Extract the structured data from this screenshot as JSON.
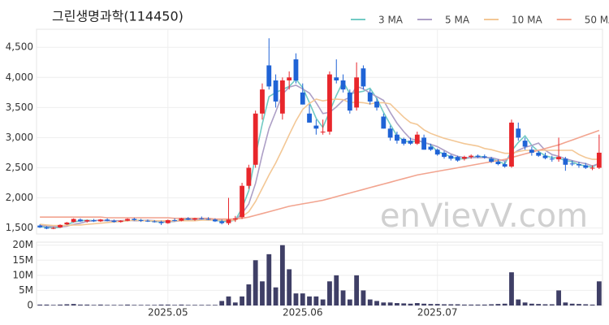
{
  "chart_data": {
    "type": "candlestick",
    "title": "그린생명과학(114450)",
    "watermark": "enVievV.com",
    "categories": [
      null,
      null,
      null,
      null,
      null,
      null,
      null,
      null,
      null,
      null,
      null,
      null,
      null,
      null,
      null,
      null,
      null,
      null,
      null,
      "2025.05",
      null,
      null,
      null,
      null,
      null,
      null,
      null,
      null,
      null,
      null,
      null,
      null,
      null,
      null,
      null,
      null,
      null,
      null,
      null,
      "2025.06",
      null,
      null,
      null,
      null,
      null,
      null,
      null,
      null,
      null,
      null,
      null,
      null,
      null,
      null,
      null,
      null,
      null,
      null,
      null,
      "2025.07",
      null,
      null,
      null,
      null,
      null,
      null,
      null,
      null,
      null,
      null,
      null,
      null,
      null,
      null,
      null,
      null,
      null,
      null,
      null,
      null,
      null,
      null,
      null,
      null
    ],
    "ohlc": [
      [
        1540,
        1560,
        1500,
        1510
      ],
      [
        1510,
        1530,
        1480,
        1490
      ],
      [
        1490,
        1520,
        1480,
        1500
      ],
      [
        1510,
        1560,
        1500,
        1550
      ],
      [
        1560,
        1600,
        1550,
        1590
      ],
      [
        1600,
        1660,
        1590,
        1650
      ],
      [
        1640,
        1660,
        1600,
        1610
      ],
      [
        1610,
        1640,
        1590,
        1630
      ],
      [
        1630,
        1650,
        1600,
        1610
      ],
      [
        1610,
        1650,
        1600,
        1640
      ],
      [
        1640,
        1660,
        1610,
        1620
      ],
      [
        1620,
        1640,
        1590,
        1600
      ],
      [
        1600,
        1630,
        1590,
        1620
      ],
      [
        1620,
        1660,
        1610,
        1650
      ],
      [
        1650,
        1670,
        1620,
        1630
      ],
      [
        1630,
        1650,
        1600,
        1620
      ],
      [
        1620,
        1640,
        1600,
        1610
      ],
      [
        1610,
        1630,
        1590,
        1600
      ],
      [
        1600,
        1620,
        1550,
        1580
      ],
      [
        1580,
        1640,
        1570,
        1630
      ],
      [
        1630,
        1660,
        1610,
        1620
      ],
      [
        1620,
        1670,
        1610,
        1660
      ],
      [
        1660,
        1680,
        1630,
        1640
      ],
      [
        1640,
        1670,
        1620,
        1660
      ],
      [
        1660,
        1690,
        1640,
        1650
      ],
      [
        1650,
        1680,
        1630,
        1640
      ],
      [
        1640,
        1660,
        1600,
        1610
      ],
      [
        1610,
        1640,
        1560,
        1580
      ],
      [
        1580,
        2000,
        1550,
        1640
      ],
      [
        1640,
        1700,
        1600,
        1660
      ],
      [
        1680,
        2250,
        1650,
        2200
      ],
      [
        2200,
        2550,
        2150,
        2500
      ],
      [
        2550,
        3450,
        2500,
        3400
      ],
      [
        3400,
        3900,
        3300,
        3800
      ],
      [
        4200,
        4650,
        3800,
        3850
      ],
      [
        3950,
        4050,
        3500,
        3600
      ],
      [
        3400,
        4000,
        3300,
        3950
      ],
      [
        3950,
        4100,
        3800,
        4000
      ],
      [
        4300,
        4400,
        3900,
        3950
      ],
      [
        3750,
        3900,
        3550,
        3550
      ],
      [
        3400,
        3550,
        3250,
        3250
      ],
      [
        3200,
        3300,
        3050,
        3150
      ],
      [
        3100,
        3300,
        3050,
        3100
      ],
      [
        3100,
        4100,
        3050,
        4050
      ],
      [
        4000,
        4300,
        3900,
        3950
      ],
      [
        3950,
        4050,
        3750,
        3800
      ],
      [
        3750,
        3800,
        3400,
        3450
      ],
      [
        3500,
        4250,
        3450,
        4000
      ],
      [
        4150,
        4200,
        3800,
        3850
      ],
      [
        3750,
        3800,
        3550,
        3600
      ],
      [
        3600,
        3650,
        3450,
        3500
      ],
      [
        3350,
        3400,
        3150,
        3150
      ],
      [
        3150,
        3200,
        2950,
        3000
      ],
      [
        3050,
        3100,
        2900,
        2950
      ],
      [
        2980,
        3000,
        2870,
        2900
      ],
      [
        2950,
        3000,
        2880,
        2900
      ],
      [
        2900,
        3100,
        2880,
        3050
      ],
      [
        3000,
        3050,
        2800,
        2800
      ],
      [
        2850,
        2900,
        2780,
        2800
      ],
      [
        2800,
        2820,
        2700,
        2720
      ],
      [
        2750,
        2780,
        2650,
        2680
      ],
      [
        2700,
        2720,
        2620,
        2650
      ],
      [
        2680,
        2700,
        2600,
        2620
      ],
      [
        2650,
        2700,
        2620,
        2680
      ],
      [
        2680,
        2720,
        2650,
        2700
      ],
      [
        2700,
        2720,
        2660,
        2680
      ],
      [
        2690,
        2720,
        2650,
        2670
      ],
      [
        2650,
        2680,
        2580,
        2600
      ],
      [
        2600,
        2640,
        2540,
        2560
      ],
      [
        2560,
        2600,
        2500,
        2520
      ],
      [
        2520,
        3300,
        2500,
        3250
      ],
      [
        3150,
        3250,
        2950,
        3000
      ],
      [
        2950,
        3000,
        2800,
        2850
      ],
      [
        2800,
        2850,
        2700,
        2750
      ],
      [
        2750,
        2780,
        2680,
        2700
      ],
      [
        2700,
        2750,
        2640,
        2660
      ],
      [
        2650,
        2700,
        2600,
        2640
      ],
      [
        2640,
        3000,
        2600,
        2680
      ],
      [
        2650,
        2680,
        2450,
        2550
      ],
      [
        2570,
        2620,
        2530,
        2560
      ],
      [
        2560,
        2600,
        2500,
        2540
      ],
      [
        2540,
        2580,
        2480,
        2500
      ],
      [
        2500,
        2540,
        2460,
        2500
      ],
      [
        2500,
        3050,
        2480,
        2750
      ]
    ],
    "volume": [
      300000,
      300000,
      200000,
      300000,
      400000,
      500000,
      300000,
      300000,
      200000,
      300000,
      200000,
      200000,
      200000,
      300000,
      200000,
      200000,
      200000,
      200000,
      300000,
      300000,
      200000,
      300000,
      200000,
      200000,
      200000,
      200000,
      200000,
      1500000,
      3000000,
      1000000,
      3000000,
      7000000,
      15000000,
      8000000,
      17000000,
      6000000,
      20000000,
      12000000,
      4000000,
      4000000,
      3000000,
      3000000,
      2000000,
      8000000,
      10000000,
      5000000,
      2000000,
      10000000,
      5000000,
      2000000,
      1500000,
      1000000,
      1000000,
      800000,
      700000,
      600000,
      800000,
      600000,
      500000,
      500000,
      400000,
      400000,
      400000,
      300000,
      300000,
      300000,
      300000,
      400000,
      500000,
      600000,
      11000000,
      2000000,
      1000000,
      600000,
      500000,
      400000,
      400000,
      5000000,
      1000000,
      600000,
      500000,
      400000,
      300000,
      8000000
    ],
    "series": [
      {
        "name": "3 MA",
        "color": "#72cbc4",
        "values": [
          1530,
          1510,
          1500,
          1510,
          1550,
          1600,
          1620,
          1630,
          1620,
          1630,
          1620,
          1620,
          1610,
          1620,
          1630,
          1630,
          1620,
          1610,
          1600,
          1600,
          1610,
          1640,
          1640,
          1650,
          1650,
          1650,
          1630,
          1610,
          1610,
          1630,
          1830,
          2120,
          2700,
          3230,
          3680,
          3750,
          3800,
          3850,
          3970,
          3830,
          3580,
          3320,
          3170,
          3430,
          3700,
          3930,
          3730,
          3750,
          3770,
          3820,
          3650,
          3420,
          3220,
          3030,
          2950,
          2920,
          2950,
          2920,
          2880,
          2770,
          2730,
          2680,
          2650,
          2650,
          2670,
          2690,
          2680,
          2650,
          2610,
          2560,
          2780,
          2920,
          3030,
          2870,
          2770,
          2700,
          2670,
          2660,
          2620,
          2600,
          2550,
          2530,
          2510,
          2580
        ]
      },
      {
        "name": "5 MA",
        "color": "#ad9fc6",
        "values": [
          1540,
          1530,
          1520,
          1520,
          1530,
          1560,
          1580,
          1610,
          1620,
          1630,
          1620,
          1620,
          1620,
          1630,
          1620,
          1620,
          1630,
          1620,
          1610,
          1610,
          1610,
          1620,
          1630,
          1640,
          1650,
          1650,
          1640,
          1630,
          1620,
          1630,
          1740,
          1900,
          2240,
          2720,
          3150,
          3430,
          3720,
          3840,
          3870,
          3810,
          3740,
          3580,
          3400,
          3420,
          3510,
          3620,
          3670,
          3850,
          3810,
          3740,
          3680,
          3620,
          3420,
          3240,
          3100,
          2980,
          2960,
          2920,
          2890,
          2850,
          2790,
          2730,
          2690,
          2670,
          2670,
          2670,
          2670,
          2670,
          2640,
          2610,
          2720,
          2790,
          2840,
          2870,
          2910,
          2790,
          2720,
          2690,
          2650,
          2620,
          2590,
          2570,
          2530,
          2570
        ]
      },
      {
        "name": "10 MA",
        "color": "#f3c795",
        "values": [
          1560,
          1550,
          1540,
          1540,
          1540,
          1550,
          1550,
          1560,
          1570,
          1580,
          1590,
          1600,
          1610,
          1620,
          1630,
          1620,
          1620,
          1620,
          1620,
          1620,
          1620,
          1620,
          1620,
          1620,
          1630,
          1630,
          1630,
          1630,
          1630,
          1630,
          1690,
          1770,
          1940,
          2160,
          2380,
          2580,
          2810,
          3050,
          3280,
          3470,
          3570,
          3640,
          3610,
          3630,
          3640,
          3630,
          3580,
          3590,
          3580,
          3560,
          3580,
          3580,
          3560,
          3450,
          3340,
          3250,
          3220,
          3130,
          3070,
          3030,
          2990,
          2960,
          2930,
          2900,
          2880,
          2860,
          2820,
          2800,
          2770,
          2740,
          2740,
          2770,
          2790,
          2790,
          2790,
          2790,
          2790,
          2790,
          2790,
          2790,
          2720,
          2670,
          2640,
          2640
        ]
      },
      {
        "name": "50 MA",
        "color": "#f2a48f",
        "values": [
          1680,
          1680,
          1680,
          1680,
          1680,
          1680,
          1680,
          1680,
          1680,
          1680,
          1670,
          1670,
          1670,
          1670,
          1670,
          1670,
          1670,
          1670,
          1670,
          1670,
          1660,
          1660,
          1660,
          1660,
          1660,
          1660,
          1650,
          1650,
          1650,
          1650,
          1660,
          1680,
          1710,
          1740,
          1770,
          1800,
          1830,
          1860,
          1880,
          1900,
          1920,
          1940,
          1960,
          1990,
          2020,
          2050,
          2080,
          2110,
          2140,
          2170,
          2200,
          2230,
          2260,
          2290,
          2320,
          2350,
          2380,
          2400,
          2420,
          2440,
          2460,
          2480,
          2500,
          2520,
          2540,
          2560,
          2580,
          2600,
          2620,
          2640,
          2670,
          2700,
          2730,
          2760,
          2790,
          2820,
          2850,
          2880,
          2920,
          2960,
          3000,
          3040,
          3080,
          3120
        ]
      }
    ],
    "up_color": "#e8262b",
    "down_color": "#1f63d6",
    "volume_color": "#3f3f66",
    "ylim": [
      1400,
      4800
    ],
    "yticks": [
      {
        "value": 1500,
        "label": "1,500"
      },
      {
        "value": 2000,
        "label": "2,000"
      },
      {
        "value": 2500,
        "label": "2,500"
      },
      {
        "value": 3000,
        "label": "3,000"
      },
      {
        "value": 3500,
        "label": "3,500"
      },
      {
        "value": 4000,
        "label": "4,000"
      },
      {
        "value": 4500,
        "label": "4,500"
      }
    ],
    "volume_ylim": [
      0,
      21000000
    ],
    "volume_yticks": [
      0,
      {
        "value": 5000000,
        "label": "5M"
      },
      {
        "value": 10000000,
        "label": "10M"
      },
      {
        "value": 15000000,
        "label": "15M"
      },
      {
        "value": 20000000,
        "label": "20M"
      }
    ],
    "grid": true
  }
}
